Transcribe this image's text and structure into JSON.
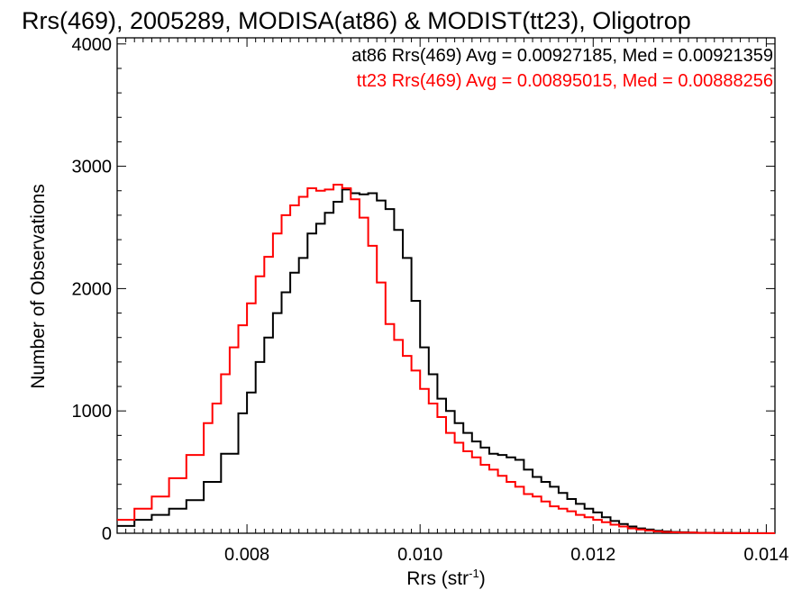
{
  "chart_data": {
    "type": "line",
    "title": "Rrs(469), 2005289, MODISA(at86) & MODIST(tt23), Oligotrop",
    "xlabel": "Rrs (str",
    "xlabel_sup": "-1",
    "xlabel_close": ")",
    "ylabel": "Number of Observations",
    "xlim": [
      0.0065,
      0.0141
    ],
    "ylim": [
      0,
      4050
    ],
    "xticks": [
      0.008,
      0.01,
      0.012,
      0.014
    ],
    "xtick_labels": [
      "0.008",
      "0.010",
      "0.012",
      "0.014"
    ],
    "yticks": [
      0,
      1000,
      2000,
      3000,
      4000
    ],
    "ytick_labels": [
      "0",
      "1000",
      "2000",
      "3000",
      "4000"
    ],
    "legend_placement": "top-right",
    "series": [
      {
        "name": "at86 Rrs(469) Avg = 0.00927185, Med = 0.00921359",
        "color": "#000000",
        "x": [
          0.0065,
          0.0067,
          0.0069,
          0.0071,
          0.0073,
          0.0075,
          0.0077,
          0.0079,
          0.008,
          0.0081,
          0.0082,
          0.0083,
          0.0084,
          0.0085,
          0.0086,
          0.0087,
          0.0088,
          0.0089,
          0.009,
          0.0091,
          0.0092,
          0.0093,
          0.0094,
          0.0095,
          0.0096,
          0.0097,
          0.0098,
          0.0099,
          0.01,
          0.0101,
          0.0102,
          0.0103,
          0.0104,
          0.0105,
          0.0106,
          0.0107,
          0.0108,
          0.0109,
          0.011,
          0.0111,
          0.0112,
          0.0113,
          0.0114,
          0.0115,
          0.0116,
          0.0117,
          0.0118,
          0.0119,
          0.012,
          0.0121,
          0.0122,
          0.0123,
          0.0124,
          0.0125,
          0.0126,
          0.0127,
          0.0128,
          0.0129,
          0.013,
          0.0131,
          0.0132,
          0.0134,
          0.0136,
          0.0138,
          0.014,
          0.0141
        ],
        "y": [
          60,
          110,
          150,
          200,
          270,
          420,
          650,
          980,
          1150,
          1400,
          1600,
          1800,
          1970,
          2130,
          2250,
          2450,
          2530,
          2620,
          2710,
          2810,
          2780,
          2770,
          2780,
          2720,
          2650,
          2480,
          2250,
          1900,
          1520,
          1300,
          1100,
          1000,
          900,
          820,
          750,
          700,
          650,
          640,
          620,
          600,
          520,
          460,
          420,
          380,
          330,
          280,
          240,
          200,
          170,
          130,
          100,
          75,
          55,
          40,
          30,
          20,
          15,
          10,
          8,
          5,
          4,
          3,
          2,
          1,
          0,
          0
        ]
      },
      {
        "name": "tt23 Rrs(469) Avg = 0.00895015, Med = 0.00888256",
        "color": "#ff0000",
        "x": [
          0.0065,
          0.0067,
          0.0069,
          0.0071,
          0.0073,
          0.0075,
          0.0076,
          0.0077,
          0.0078,
          0.0079,
          0.008,
          0.0081,
          0.0082,
          0.0083,
          0.0084,
          0.0085,
          0.0086,
          0.0087,
          0.0088,
          0.0089,
          0.009,
          0.0091,
          0.0092,
          0.0093,
          0.0094,
          0.0095,
          0.0096,
          0.0097,
          0.0098,
          0.0099,
          0.01,
          0.0101,
          0.0102,
          0.0103,
          0.0104,
          0.0105,
          0.0106,
          0.0107,
          0.0108,
          0.0109,
          0.011,
          0.0111,
          0.0112,
          0.0113,
          0.0114,
          0.0115,
          0.0116,
          0.0117,
          0.0118,
          0.0119,
          0.012,
          0.0121,
          0.0122,
          0.0123,
          0.0124,
          0.0125,
          0.0126,
          0.0127,
          0.0128,
          0.0129,
          0.013,
          0.0132,
          0.0134,
          0.0136,
          0.0138,
          0.014,
          0.0141
        ],
        "y": [
          110,
          200,
          300,
          450,
          640,
          900,
          1060,
          1300,
          1520,
          1700,
          1880,
          2100,
          2260,
          2450,
          2600,
          2680,
          2750,
          2820,
          2800,
          2810,
          2850,
          2820,
          2730,
          2580,
          2350,
          2050,
          1710,
          1580,
          1450,
          1330,
          1180,
          1060,
          950,
          820,
          740,
          670,
          620,
          560,
          520,
          470,
          420,
          380,
          320,
          300,
          260,
          220,
          200,
          180,
          150,
          130,
          110,
          90,
          70,
          55,
          40,
          30,
          22,
          15,
          10,
          7,
          5,
          3,
          2,
          1,
          0,
          0,
          0
        ]
      }
    ]
  }
}
